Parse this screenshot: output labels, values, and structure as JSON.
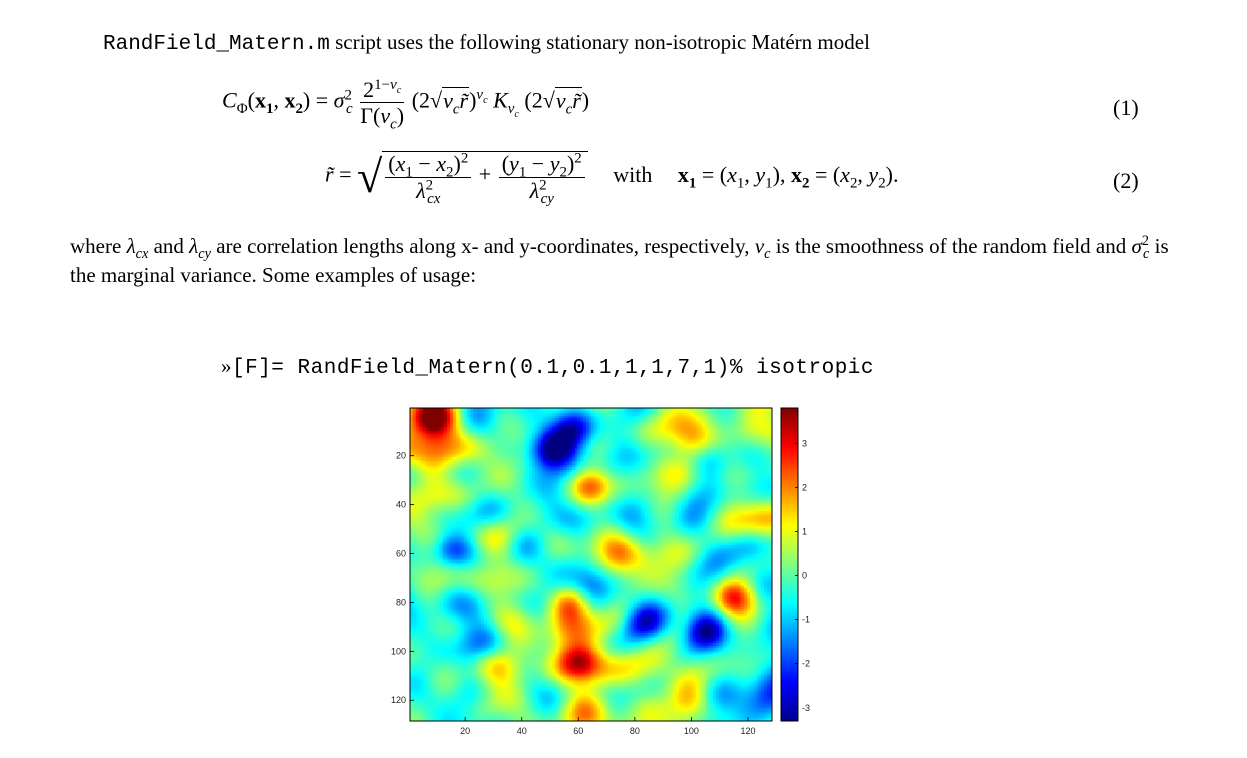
{
  "intro": {
    "code": "RandField_Matern.m",
    "text": "script uses the following stationary non-isotropic Matérn model"
  },
  "equations": {
    "eq1_number": "(1)",
    "eq2_number": "(2)",
    "with_word": "with"
  },
  "paragraph": {
    "p1": "where",
    "p2": "and",
    "p3": "are correlation lengths along x- and y-coordinates, respectively,",
    "p4": "is the smoothness of the random field and",
    "p5": "is the marginal variance. Some examples of usage:"
  },
  "command": {
    "prompt": "»",
    "code": "[F]= RandField_Matern(0.1,0.1,1,1,7,1)% isotropic"
  },
  "chart_data": {
    "type": "heatmap",
    "x_ticks": [
      "20",
      "40",
      "60",
      "80",
      "100",
      "120"
    ],
    "y_ticks": [
      "20",
      "40",
      "60",
      "80",
      "100",
      "120"
    ],
    "xlim": [
      0.5,
      128.5
    ],
    "ylim": [
      0.5,
      128.5
    ],
    "colorbar_ticks": [
      "3",
      "2",
      "1",
      "0",
      "-1",
      "-2",
      "-3"
    ],
    "colorbar_range": [
      -3.3,
      3.8
    ],
    "colormap": "jet",
    "grid_size": [
      128,
      128
    ],
    "features": [
      {
        "x": 8,
        "y": 4,
        "v": 3.6
      },
      {
        "x": 64,
        "y": 32,
        "v": 3.4
      },
      {
        "x": 57,
        "y": 80,
        "v": 3.0
      },
      {
        "x": 60,
        "y": 104,
        "v": 3.2
      },
      {
        "x": 115,
        "y": 78,
        "v": 2.8
      },
      {
        "x": 100,
        "y": 14,
        "v": 1.5
      },
      {
        "x": 100,
        "y": 120,
        "v": 1.8
      },
      {
        "x": 75,
        "y": 60,
        "v": 1.3
      },
      {
        "x": 30,
        "y": 105,
        "v": 1.4
      },
      {
        "x": 15,
        "y": 58,
        "v": -3.0
      },
      {
        "x": 50,
        "y": 18,
        "v": -3.0
      },
      {
        "x": 58,
        "y": 8,
        "v": -2.5
      },
      {
        "x": 64,
        "y": 72,
        "v": -1.8
      },
      {
        "x": 105,
        "y": 92,
        "v": -3.2
      },
      {
        "x": 82,
        "y": 88,
        "v": -1.8
      },
      {
        "x": 106,
        "y": 22,
        "v": -1.4
      },
      {
        "x": 120,
        "y": 56,
        "v": -1.5
      },
      {
        "x": 40,
        "y": 56,
        "v": -1.0
      },
      {
        "x": 20,
        "y": 122,
        "v": -0.9
      },
      {
        "x": 33,
        "y": 25,
        "v": 0.6
      }
    ]
  }
}
